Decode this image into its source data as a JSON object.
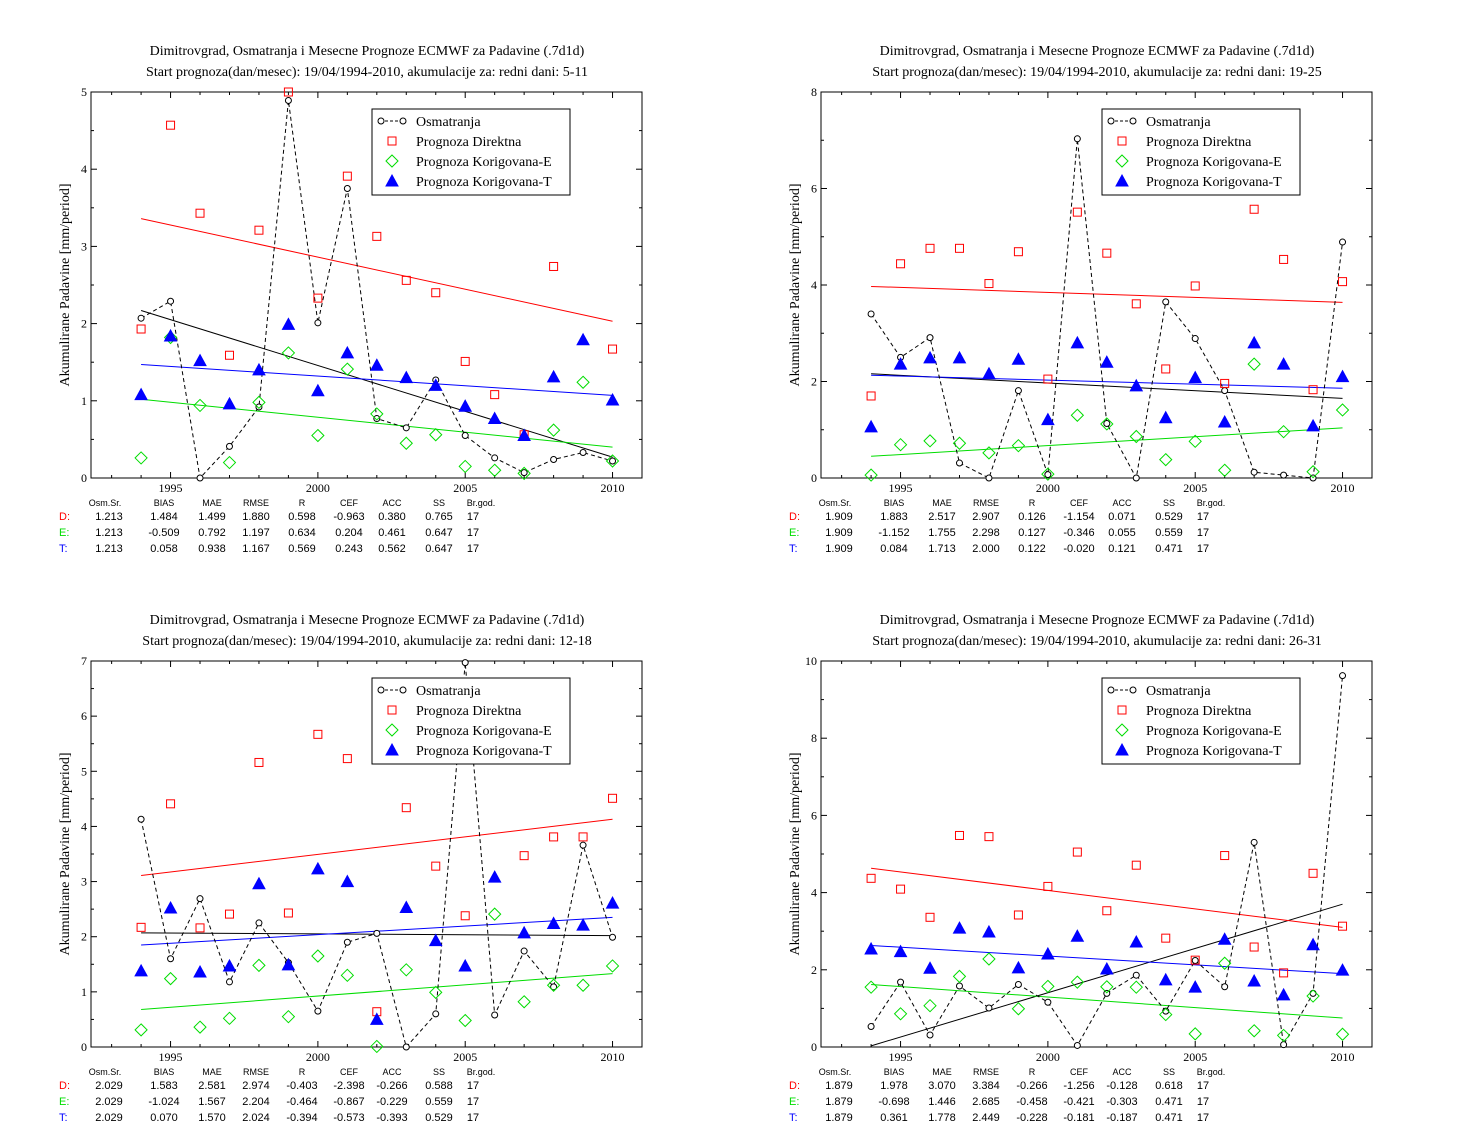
{
  "colors": {
    "D": "#ff0000",
    "E": "#00dd00",
    "T": "#0000ff",
    "obs": "#000000"
  },
  "legend": [
    "Osmatranja",
    "Prognoza Direktna",
    "Prognoza Korigovana-E",
    "Prognoza Korigovana-T"
  ],
  "ylabel": "Akumulirane Padavine [mm/period]",
  "stats_header": [
    "Osm.Sr.",
    "BIAS",
    "MAE",
    "RMSE",
    "R",
    "CEF",
    "ACC",
    "SS",
    "Br.god."
  ],
  "chart_data": [
    {
      "type": "scatter",
      "title": "Dimitrovgrad, Osmatranja i Mesecne Prognoze ECMWF za Padavine (.7d1d)",
      "subtitle": "Start prognoza(dan/mesec): 19/04/1994-2010, akumulacije za: redni dani: 5-11",
      "xlim": [
        1992.3,
        2011
      ],
      "ylim": [
        0,
        5
      ],
      "xticks": [
        1995,
        2000,
        2005,
        2010
      ],
      "yticks": [
        0,
        1,
        2,
        3,
        4,
        5
      ],
      "x": [
        1994,
        1995,
        1996,
        1997,
        1998,
        1999,
        2000,
        2001,
        2002,
        2003,
        2004,
        2005,
        2006,
        2007,
        2008,
        2009,
        2010
      ],
      "series": [
        {
          "name": "Osmatranja",
          "values": [
            2.07,
            2.29,
            0.0,
            0.41,
            0.92,
            4.89,
            2.01,
            3.75,
            0.77,
            0.65,
            1.27,
            0.55,
            0.26,
            0.07,
            0.24,
            0.33,
            0.22
          ],
          "trend": [
            2.17,
            0.27
          ]
        },
        {
          "name": "Prognoza Direktna",
          "values": [
            1.93,
            4.57,
            3.43,
            1.59,
            3.21,
            5.0,
            2.33,
            3.91,
            3.13,
            2.56,
            2.4,
            1.51,
            1.08,
            0.56,
            2.74,
            null,
            1.67
          ],
          "trend": [
            3.36,
            2.03
          ]
        },
        {
          "name": "Prognoza Korigovana-E",
          "values": [
            0.26,
            1.82,
            0.94,
            0.2,
            0.98,
            1.62,
            0.55,
            1.41,
            0.83,
            0.45,
            0.56,
            0.15,
            0.1,
            0.06,
            0.62,
            1.24,
            0.22
          ],
          "trend": [
            1.02,
            0.4
          ]
        },
        {
          "name": "Prognoza Korigovana-T",
          "values": [
            1.08,
            1.84,
            1.52,
            0.96,
            1.4,
            1.99,
            1.13,
            1.62,
            1.46,
            1.3,
            1.2,
            0.93,
            0.77,
            0.55,
            1.31,
            1.79,
            1.01
          ],
          "trend": [
            1.47,
            1.07
          ]
        }
      ],
      "stats": [
        {
          "label": "D:",
          "values": [
            "1.213",
            "1.484",
            "1.499",
            "1.880",
            "0.598",
            "-0.963",
            "0.380",
            "0.765",
            "17"
          ]
        },
        {
          "label": "E:",
          "values": [
            "1.213",
            "-0.509",
            "0.792",
            "1.197",
            "0.634",
            "0.204",
            "0.461",
            "0.647",
            "17"
          ]
        },
        {
          "label": "T:",
          "values": [
            "1.213",
            "0.058",
            "0.938",
            "1.167",
            "0.569",
            "0.243",
            "0.562",
            "0.647",
            "17"
          ]
        }
      ]
    },
    {
      "type": "scatter",
      "title": "Dimitrovgrad, Osmatranja i Mesecne Prognoze ECMWF za Padavine (.7d1d)",
      "subtitle": "Start prognoza(dan/mesec): 19/04/1994-2010, akumulacije za: redni dani: 19-25",
      "xlim": [
        1992.3,
        2011
      ],
      "ylim": [
        0,
        8
      ],
      "xticks": [
        1995,
        2000,
        2005,
        2010
      ],
      "yticks": [
        0,
        2,
        4,
        6,
        8
      ],
      "x": [
        1994,
        1995,
        1996,
        1997,
        1998,
        1999,
        2000,
        2001,
        2002,
        2003,
        2004,
        2005,
        2006,
        2007,
        2008,
        2009,
        2010
      ],
      "series": [
        {
          "name": "Osmatranja",
          "values": [
            3.4,
            2.5,
            2.91,
            0.31,
            0.0,
            1.81,
            0.07,
            7.03,
            1.13,
            0.0,
            3.65,
            2.89,
            1.81,
            0.12,
            0.06,
            0.0,
            4.89
          ],
          "trend": [
            2.16,
            1.65
          ]
        },
        {
          "name": "Prognoza Direktna",
          "values": [
            1.7,
            4.44,
            4.76,
            4.76,
            4.03,
            4.69,
            2.05,
            5.51,
            4.66,
            3.61,
            2.26,
            3.98,
            1.96,
            5.57,
            4.53,
            1.83,
            4.07
          ],
          "trend": [
            3.97,
            3.64
          ]
        },
        {
          "name": "Prognoza Korigovana-E",
          "values": [
            0.06,
            0.69,
            0.77,
            0.72,
            0.52,
            0.67,
            0.08,
            1.3,
            1.12,
            0.86,
            0.38,
            0.76,
            0.16,
            2.36,
            0.96,
            0.13,
            1.41
          ],
          "trend": [
            0.45,
            1.04
          ]
        },
        {
          "name": "Prognoza Korigovana-T",
          "values": [
            1.06,
            2.36,
            2.49,
            2.49,
            2.16,
            2.46,
            1.21,
            2.8,
            2.4,
            1.91,
            1.25,
            2.08,
            1.16,
            2.8,
            2.36,
            1.08,
            2.1
          ],
          "trend": [
            2.13,
            1.86
          ]
        }
      ],
      "stats": [
        {
          "label": "D:",
          "values": [
            "1.909",
            "1.883",
            "2.517",
            "2.907",
            "0.126",
            "-1.154",
            "0.071",
            "0.529",
            "17"
          ]
        },
        {
          "label": "E:",
          "values": [
            "1.909",
            "-1.152",
            "1.755",
            "2.298",
            "0.127",
            "-0.346",
            "0.055",
            "0.559",
            "17"
          ]
        },
        {
          "label": "T:",
          "values": [
            "1.909",
            "0.084",
            "1.713",
            "2.000",
            "0.122",
            "-0.020",
            "0.121",
            "0.471",
            "17"
          ]
        }
      ]
    },
    {
      "type": "scatter",
      "title": "Dimitrovgrad, Osmatranja i Mesecne Prognoze ECMWF za Padavine (.7d1d)",
      "subtitle": "Start prognoza(dan/mesec): 19/04/1994-2010, akumulacije za: redni dani: 12-18",
      "xlim": [
        1992.3,
        2011
      ],
      "ylim": [
        0,
        7
      ],
      "xticks": [
        1995,
        2000,
        2005,
        2010
      ],
      "yticks": [
        0,
        1,
        2,
        3,
        4,
        5,
        6,
        7
      ],
      "x": [
        1994,
        1995,
        1996,
        1997,
        1998,
        1999,
        2000,
        2001,
        2002,
        2003,
        2004,
        2005,
        2006,
        2007,
        2008,
        2009,
        2010
      ],
      "series": [
        {
          "name": "Osmatranja",
          "values": [
            4.13,
            1.6,
            2.69,
            1.18,
            2.25,
            1.53,
            0.65,
            1.9,
            2.06,
            0.0,
            0.6,
            6.97,
            0.58,
            1.74,
            1.09,
            3.66,
            1.99
          ],
          "trend": [
            2.07,
            2.02
          ]
        },
        {
          "name": "Prognoza Direktna",
          "values": [
            2.17,
            4.41,
            2.16,
            2.41,
            5.16,
            2.43,
            5.67,
            5.23,
            0.64,
            4.34,
            3.28,
            2.38,
            null,
            3.47,
            3.81,
            3.81,
            4.51
          ],
          "trend": [
            3.11,
            4.13
          ]
        },
        {
          "name": "Prognoza Korigovana-E",
          "values": [
            0.31,
            1.24,
            0.36,
            0.52,
            1.48,
            0.55,
            1.65,
            1.3,
            0.01,
            1.4,
            0.99,
            0.48,
            2.41,
            0.82,
            1.12,
            1.12,
            1.47
          ],
          "trend": [
            0.68,
            1.33
          ]
        },
        {
          "name": "Prognoza Korigovana-T",
          "values": [
            1.38,
            2.52,
            1.36,
            1.47,
            2.96,
            1.49,
            3.23,
            3.0,
            0.5,
            2.53,
            1.93,
            1.47,
            3.08,
            2.07,
            2.24,
            2.21,
            2.61
          ],
          "trend": [
            1.85,
            2.35
          ]
        }
      ],
      "stats": [
        {
          "label": "D:",
          "values": [
            "2.029",
            "1.583",
            "2.581",
            "2.974",
            "-0.403",
            "-2.398",
            "-0.266",
            "0.588",
            "17"
          ]
        },
        {
          "label": "E:",
          "values": [
            "2.029",
            "-1.024",
            "1.567",
            "2.204",
            "-0.464",
            "-0.867",
            "-0.229",
            "0.559",
            "17"
          ]
        },
        {
          "label": "T:",
          "values": [
            "2.029",
            "0.070",
            "1.570",
            "2.024",
            "-0.394",
            "-0.573",
            "-0.393",
            "0.529",
            "17"
          ]
        }
      ]
    },
    {
      "type": "scatter",
      "title": "Dimitrovgrad, Osmatranja i Mesecne Prognoze ECMWF za Padavine (.7d1d)",
      "subtitle": "Start prognoza(dan/mesec): 19/04/1994-2010, akumulacije za: redni dani: 26-31",
      "xlim": [
        1992.3,
        2011
      ],
      "ylim": [
        0,
        10
      ],
      "xticks": [
        1995,
        2000,
        2005,
        2010
      ],
      "yticks": [
        0,
        2,
        4,
        6,
        8,
        10
      ],
      "x": [
        1994,
        1995,
        1996,
        1997,
        1998,
        1999,
        2000,
        2001,
        2002,
        2003,
        2004,
        2005,
        2006,
        2007,
        2008,
        2009,
        2010
      ],
      "series": [
        {
          "name": "Osmatranja",
          "values": [
            0.53,
            1.68,
            0.31,
            1.58,
            1.01,
            1.62,
            1.16,
            0.04,
            1.39,
            1.86,
            0.93,
            2.24,
            1.56,
            5.3,
            0.06,
            1.39,
            9.62
          ],
          "trend": [
            0.03,
            3.7
          ]
        },
        {
          "name": "Prognoza Direktna",
          "values": [
            4.37,
            4.09,
            3.36,
            5.48,
            5.45,
            3.42,
            4.16,
            5.05,
            3.53,
            4.71,
            2.82,
            2.25,
            4.96,
            2.59,
            1.92,
            4.5,
            3.13
          ],
          "trend": [
            4.63,
            3.1
          ]
        },
        {
          "name": "Prognoza Korigovana-E",
          "values": [
            1.55,
            0.86,
            1.07,
            1.83,
            2.28,
            0.99,
            1.57,
            1.68,
            1.56,
            1.55,
            0.84,
            0.34,
            2.17,
            0.42,
            0.3,
            1.32,
            0.33
          ],
          "trend": [
            1.62,
            0.75
          ]
        },
        {
          "name": "Prognoza Korigovana-T",
          "values": [
            2.54,
            2.47,
            2.04,
            3.08,
            2.98,
            2.05,
            2.41,
            2.87,
            2.02,
            2.72,
            1.74,
            1.55,
            2.79,
            1.71,
            1.35,
            2.65,
            1.99
          ],
          "trend": [
            2.63,
            1.9
          ]
        }
      ],
      "stats": [
        {
          "label": "D:",
          "values": [
            "1.879",
            "1.978",
            "3.070",
            "3.384",
            "-0.266",
            "-1.256",
            "-0.128",
            "0.618",
            "17"
          ]
        },
        {
          "label": "E:",
          "values": [
            "1.879",
            "-0.698",
            "1.446",
            "2.685",
            "-0.458",
            "-0.421",
            "-0.303",
            "0.471",
            "17"
          ]
        },
        {
          "label": "T:",
          "values": [
            "1.879",
            "0.361",
            "1.778",
            "2.449",
            "-0.228",
            "-0.181",
            "-0.187",
            "0.471",
            "17"
          ]
        }
      ]
    }
  ]
}
